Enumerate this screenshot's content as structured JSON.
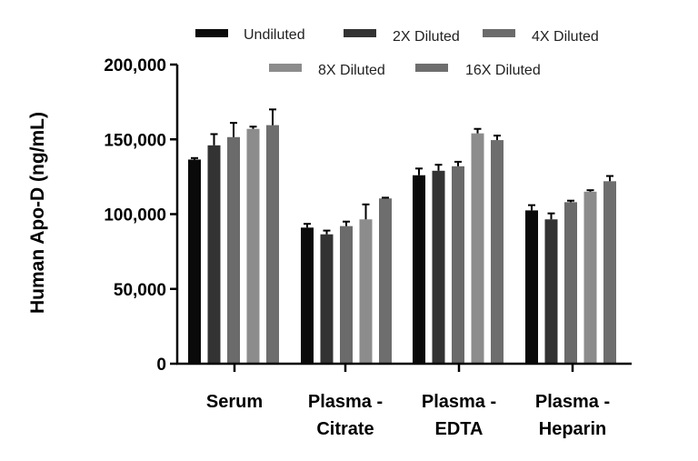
{
  "chart_data": {
    "type": "bar",
    "title": "",
    "xlabel": "",
    "ylabel": "Human Apo-D (ng/mL)",
    "ylim": [
      0,
      200000
    ],
    "yticks": [
      0,
      50000,
      100000,
      150000,
      200000
    ],
    "ytick_labels": [
      "0",
      "50,000",
      "100,000",
      "150,000",
      "200,000"
    ],
    "categories": [
      {
        "line1": "Serum",
        "line2": ""
      },
      {
        "line1": "Plasma -",
        "line2": "Citrate"
      },
      {
        "line1": "Plasma -",
        "line2": "EDTA"
      },
      {
        "line1": "Plasma -",
        "line2": "Heparin"
      }
    ],
    "series": [
      {
        "name": "Undiluted",
        "color": "#0a0a0a",
        "values": [
          136500,
          91000,
          126000,
          102500
        ],
        "errors": [
          1000,
          2500,
          4500,
          3500
        ]
      },
      {
        "name": "2X Diluted",
        "color": "#333333",
        "values": [
          146000,
          86500,
          129000,
          96500
        ],
        "errors": [
          7500,
          2500,
          4000,
          4000
        ]
      },
      {
        "name": "4X Diluted",
        "color": "#6b6b6b",
        "values": [
          151500,
          92000,
          132000,
          108000
        ],
        "errors": [
          9500,
          3000,
          3000,
          1000
        ]
      },
      {
        "name": "8X Diluted",
        "color": "#8c8c8c",
        "values": [
          157000,
          96500,
          154000,
          115000
        ],
        "errors": [
          1500,
          10000,
          3000,
          1000
        ]
      },
      {
        "name": "16X Diluted",
        "color": "#6e6e6e",
        "values": [
          159500,
          110500,
          149500,
          122000
        ],
        "errors": [
          10500,
          500,
          3000,
          3500
        ]
      }
    ],
    "legend_position": "top"
  }
}
